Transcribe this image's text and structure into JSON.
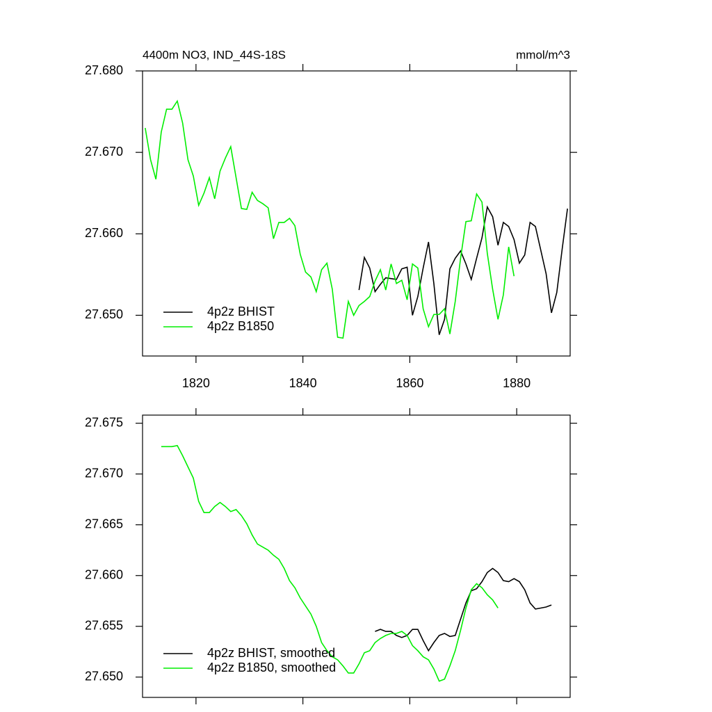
{
  "chart_data": [
    {
      "type": "line",
      "title": "4400m NO3, IND_44S-18S",
      "units": "mmol/m^3",
      "xlim": [
        1810,
        1890
      ],
      "xticks": [
        1820,
        1840,
        1860,
        1880
      ],
      "xtick_labels": true,
      "ylim": [
        27.645,
        27.68
      ],
      "yticks": [
        {
          "value": 27.65,
          "label": "27.650"
        },
        {
          "value": 27.66,
          "label": "27.660"
        },
        {
          "value": 27.67,
          "label": "27.670"
        },
        {
          "value": 27.68,
          "label": "27.680"
        }
      ],
      "grid": false,
      "legend": "lower left",
      "series": [
        {
          "name": "4p2z BHIST",
          "color": "#000000",
          "x": [
            1850.5,
            1851.5,
            1852.5,
            1853.5,
            1854.5,
            1855.5,
            1856.5,
            1857.5,
            1858.5,
            1859.5,
            1860.5,
            1861.5,
            1862.5,
            1863.5,
            1864.5,
            1865.5,
            1866.5,
            1867.5,
            1868.5,
            1869.5,
            1870.5,
            1871.5,
            1872.5,
            1873.5,
            1874.5,
            1875.5,
            1876.5,
            1877.5,
            1878.5,
            1879.5,
            1880.5,
            1881.5,
            1882.5,
            1883.5,
            1884.5,
            1885.5,
            1886.5,
            1887.5,
            1888.5,
            1889.5
          ],
          "values": [
            27.6531,
            27.6571,
            27.6558,
            27.6529,
            27.6538,
            27.6546,
            27.6545,
            27.6544,
            27.6557,
            27.6559,
            27.65,
            27.6523,
            27.6558,
            27.659,
            27.6539,
            27.6476,
            27.6495,
            27.6557,
            27.657,
            27.6579,
            27.6563,
            27.6544,
            27.657,
            27.6595,
            27.6633,
            27.6621,
            27.6586,
            27.6614,
            27.6609,
            27.6593,
            27.6564,
            27.6574,
            27.6614,
            27.6609,
            27.658,
            27.6551,
            27.6503,
            27.6528,
            27.6581,
            27.6631
          ]
        },
        {
          "name": "4p2z B1850",
          "color": "#00ee00",
          "x": [
            1810.5,
            1811.5,
            1812.5,
            1813.5,
            1814.5,
            1815.5,
            1816.5,
            1817.5,
            1818.5,
            1819.5,
            1820.5,
            1821.5,
            1822.5,
            1823.5,
            1824.5,
            1825.5,
            1826.5,
            1827.5,
            1828.5,
            1829.5,
            1830.5,
            1831.5,
            1832.5,
            1833.5,
            1834.5,
            1835.5,
            1836.5,
            1837.5,
            1838.5,
            1839.5,
            1840.5,
            1841.5,
            1842.5,
            1843.5,
            1844.5,
            1845.5,
            1846.5,
            1847.5,
            1848.5,
            1849.5,
            1850.5,
            1851.5,
            1852.5,
            1853.5,
            1854.5,
            1855.5,
            1856.5,
            1857.5,
            1858.5,
            1859.5,
            1860.5,
            1861.5,
            1862.5,
            1863.5,
            1864.5,
            1865.5,
            1866.5,
            1867.5,
            1868.5,
            1869.5,
            1870.5,
            1871.5,
            1872.5,
            1873.5,
            1874.5,
            1875.5,
            1876.5,
            1877.5,
            1878.5,
            1879.5
          ],
          "values": [
            27.673,
            27.6691,
            27.6667,
            27.6725,
            27.6753,
            27.6753,
            27.6763,
            27.6736,
            27.6691,
            27.6671,
            27.6635,
            27.665,
            27.6669,
            27.6643,
            27.6677,
            27.6693,
            27.6707,
            27.6669,
            27.6631,
            27.663,
            27.6651,
            27.6641,
            27.6637,
            27.6632,
            27.6594,
            27.6614,
            27.6614,
            27.6619,
            27.661,
            27.6575,
            27.6553,
            27.6547,
            27.6529,
            27.6556,
            27.6564,
            27.6532,
            27.6473,
            27.6472,
            27.6517,
            27.65,
            27.6512,
            27.6517,
            27.6523,
            27.6542,
            27.6556,
            27.6531,
            27.6563,
            27.6539,
            27.6543,
            27.6519,
            27.6563,
            27.6558,
            27.6508,
            27.6486,
            27.6501,
            27.6501,
            27.6508,
            27.6477,
            27.6517,
            27.657,
            27.6615,
            27.6616,
            27.6649,
            27.6639,
            27.6576,
            27.6532,
            27.6495,
            27.6525,
            27.6584,
            27.6548
          ]
        }
      ]
    },
    {
      "type": "line",
      "xlim": [
        1810,
        1890
      ],
      "xticks": [
        1820,
        1840,
        1860,
        1880
      ],
      "xtick_labels": false,
      "ylim": [
        27.648,
        27.6758
      ],
      "yticks": [
        {
          "value": 27.65,
          "label": "27.650"
        },
        27.655,
        {
          "value": 27.66,
          "label": "27.660"
        },
        27.665,
        {
          "value": 27.67,
          "label": "27.670"
        },
        27.675
      ],
      "grid": false,
      "legend": "lower left",
      "series": [
        {
          "name": "4p2z BHIST, smoothed",
          "color": "#000000",
          "x": [
            1853.5,
            1854.5,
            1855.5,
            1856.5,
            1857.5,
            1858.5,
            1859.5,
            1860.5,
            1861.5,
            1862.5,
            1863.5,
            1864.5,
            1865.5,
            1866.5,
            1867.5,
            1868.5,
            1869.5,
            1870.5,
            1871.5,
            1872.5,
            1873.5,
            1874.5,
            1875.5,
            1876.5,
            1877.5,
            1878.5,
            1879.5,
            1880.5,
            1881.5,
            1882.5,
            1883.5,
            1884.5,
            1885.5,
            1886.5
          ],
          "values": [
            27.6545,
            27.6547,
            27.6545,
            27.6545,
            27.6541,
            27.6539,
            27.6541,
            27.6547,
            27.6547,
            27.6536,
            27.6526,
            27.6534,
            27.6541,
            27.6543,
            27.654,
            27.6541,
            27.6557,
            27.6573,
            27.6585,
            27.6587,
            27.6594,
            27.6603,
            27.6607,
            27.6603,
            27.6595,
            27.6594,
            27.6597,
            27.6594,
            27.6586,
            27.6573,
            27.6567,
            27.6568,
            27.6569,
            27.6571
          ]
        },
        {
          "name": "4p2z B1850, smoothed",
          "color": "#00ee00",
          "x": [
            1813.5,
            1814.5,
            1815.5,
            1816.5,
            1817.5,
            1818.5,
            1819.5,
            1820.5,
            1821.5,
            1822.5,
            1823.5,
            1824.5,
            1825.5,
            1826.5,
            1827.5,
            1828.5,
            1829.5,
            1830.5,
            1831.5,
            1832.5,
            1833.5,
            1834.5,
            1835.5,
            1836.5,
            1837.5,
            1838.5,
            1839.5,
            1840.5,
            1841.5,
            1842.5,
            1843.5,
            1844.5,
            1845.5,
            1846.5,
            1847.5,
            1848.5,
            1849.5,
            1850.5,
            1851.5,
            1852.5,
            1853.5,
            1854.5,
            1855.5,
            1856.5,
            1857.5,
            1858.5,
            1859.5,
            1860.5,
            1861.5,
            1862.5,
            1863.5,
            1864.5,
            1865.5,
            1866.5,
            1867.5,
            1868.5,
            1869.5,
            1870.5,
            1871.5,
            1872.5,
            1873.5,
            1874.5,
            1875.5,
            1876.5
          ],
          "values": [
            27.6727,
            27.6727,
            27.6727,
            27.6728,
            27.6718,
            27.6707,
            27.6696,
            27.6673,
            27.6662,
            27.6662,
            27.6668,
            27.6672,
            27.6668,
            27.6663,
            27.6665,
            27.6659,
            27.6651,
            27.664,
            27.6631,
            27.6628,
            27.6625,
            27.662,
            27.6616,
            27.6607,
            27.6595,
            27.6588,
            27.6578,
            27.657,
            27.6562,
            27.655,
            27.6534,
            27.6526,
            27.652,
            27.6517,
            27.6511,
            27.6504,
            27.6504,
            27.6513,
            27.6524,
            27.6526,
            27.6534,
            27.6538,
            27.6541,
            27.6543,
            27.6543,
            27.6545,
            27.6541,
            27.6531,
            27.6526,
            27.652,
            27.6517,
            27.6508,
            27.6496,
            27.6498,
            27.6511,
            27.6526,
            27.6546,
            27.6568,
            27.6586,
            27.6592,
            27.6588,
            27.6581,
            27.6576,
            27.6568
          ]
        }
      ]
    }
  ]
}
